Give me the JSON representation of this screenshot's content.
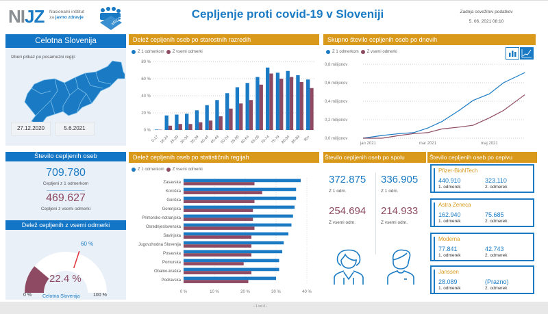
{
  "header": {
    "logo_text": "NIJZ",
    "logo_sub1": "Nacionalni inštitut",
    "logo_sub2_pre": "za",
    "logo_sub2_bold": "javno zdravje",
    "erco_label": "eRCO",
    "title": "Cepljenje proti covid-19 v Sloveniji",
    "update_label": "Zadnja osvežitev podatkov",
    "update_time": "5. 06. 2021 08:10"
  },
  "region_panel": {
    "title": "Celotna Slovenija",
    "prompt": "Izberi prikaz po posamezni regiji:",
    "date_from": "27.12.2020",
    "date_to": "5.6.2021"
  },
  "count_panel": {
    "title": "Število cepljenih oseb",
    "dose1_value": "709.780",
    "dose1_label": "Cepljeni z 1 odmerkom",
    "full_value": "469.627",
    "full_label": "Cepljeni z vsemi odmerki"
  },
  "gauge_panel": {
    "title": "Delež cepljenih z vsemi odmerki",
    "value_label": "22.4 %",
    "value": 22.4,
    "target_label": "60 %",
    "target": 60,
    "min_label": "0 %",
    "max_label": "100 %",
    "caption": "Celotna Slovenija"
  },
  "legend": {
    "dose1": "Z 1 odmerkom",
    "full": "Z vsemi odmerki"
  },
  "colors": {
    "blue": "#1a7bc4",
    "maroon": "#8d4a62",
    "gold": "#d99a1c",
    "header_blue": "#1275c5"
  },
  "sex_panel": {
    "title": "Število cepljenih oseb po spolu",
    "female_dose1": "372.875",
    "male_dose1": "336.905",
    "dose1_label": "Z 1 odm.",
    "female_full": "254.694",
    "male_full": "214.933",
    "full_label": "Z vsemi odm."
  },
  "vaccine_panel": {
    "title": "Število cepljenih oseb po cepivu",
    "vaccines": [
      {
        "name": "Pfizer-BioNTech",
        "d1": "440.910",
        "d2": "323.110",
        "l1": "1. odmerek",
        "l2": "2. odmerek"
      },
      {
        "name": "Astra Zeneca",
        "d1": "162.940",
        "d2": "75.685",
        "l1": "1. odmerek",
        "l2": "2. odmerek"
      },
      {
        "name": "Moderna",
        "d1": "77.841",
        "d2": "42.743",
        "l1": "1. odmerek",
        "l2": "2. odmerek"
      },
      {
        "name": "Janssen",
        "d1": "28.089",
        "d2": "(Prazno)",
        "l1": "1. odmerek",
        "l2": "2. odmerek"
      }
    ]
  },
  "footer": {
    "page_indicator": "1 od 4"
  },
  "chart_data": [
    {
      "type": "bar",
      "title": "Delež cepljenih oseb po starostnih razredih",
      "categories": [
        "0-17",
        "18-24",
        "25-29",
        "30-34",
        "35-39",
        "40-44",
        "45-49",
        "50-54",
        "55-59",
        "60-64",
        "65-69",
        "70-74",
        "75-79",
        "80-84",
        "85-89",
        "90+"
      ],
      "series": [
        {
          "name": "Z 1 odmerkom",
          "values": [
            0.5,
            17,
            18,
            19,
            23,
            29,
            35,
            43,
            50,
            55,
            62,
            73,
            67,
            69,
            64,
            59
          ]
        },
        {
          "name": "Z vsemi odmerki",
          "values": [
            0.3,
            5,
            7,
            7,
            9,
            11,
            16,
            25,
            31,
            35,
            53,
            66,
            60,
            62,
            56,
            49
          ]
        }
      ],
      "yticks": [
        "0 %",
        "20 %",
        "40 %",
        "60 %",
        "80 %"
      ],
      "ylim": [
        0,
        80
      ],
      "grid": true,
      "legend": "top-left"
    },
    {
      "type": "line",
      "title": "Skupno število cepljenih oseb po dnevih",
      "x": [
        "2020-12-27",
        "2021-01-15",
        "2021-02-01",
        "2021-02-15",
        "2021-03-01",
        "2021-03-15",
        "2021-04-01",
        "2021-04-15",
        "2021-05-01",
        "2021-05-15",
        "2021-06-05"
      ],
      "series": [
        {
          "name": "Z 1 odmerkom",
          "values": [
            0.0,
            0.03,
            0.05,
            0.06,
            0.11,
            0.18,
            0.3,
            0.41,
            0.48,
            0.6,
            0.71
          ]
        },
        {
          "name": "Z vsemi odmerki",
          "values": [
            0.0,
            0.0,
            0.03,
            0.05,
            0.06,
            0.1,
            0.12,
            0.14,
            0.22,
            0.3,
            0.47
          ]
        }
      ],
      "yticks": [
        "0,0 milijonov",
        "0,2 milijonov",
        "0,4 milijonov",
        "0,6 milijonov",
        "0,8 milijonov"
      ],
      "xticks": [
        "jan 2021",
        "mar 2021",
        "maj 2021"
      ],
      "ylim": [
        0,
        0.8
      ],
      "grid": true,
      "legend": "top-left"
    },
    {
      "type": "bar",
      "orientation": "horizontal",
      "title": "Delež cepljenih oseb po statističnih regijah",
      "categories": [
        "Zasavska",
        "Koroška",
        "Goriška",
        "Gorenjska",
        "Primorsko-notranjska",
        "Osrednjeslovenska",
        "Savinjska",
        "Jugovzhodna Slovenija",
        "Posavska",
        "Pomurska",
        "Obalno-kraška",
        "Podravska"
      ],
      "series": [
        {
          "name": "Z 1 odmerkom",
          "values": [
            38,
            36.5,
            36.5,
            36,
            35.5,
            35,
            34,
            32.5,
            32,
            31,
            31,
            30
          ]
        },
        {
          "name": "Z vsemi odmerki",
          "values": [
            23,
            25.5,
            23,
            22.5,
            22.5,
            23,
            22,
            22,
            22,
            19.5,
            22,
            21
          ]
        }
      ],
      "xticks": [
        "0 %",
        "10 %",
        "20 %",
        "30 %",
        "40 %"
      ],
      "xlim": [
        0,
        40
      ],
      "grid": true,
      "legend": "top-left"
    }
  ]
}
